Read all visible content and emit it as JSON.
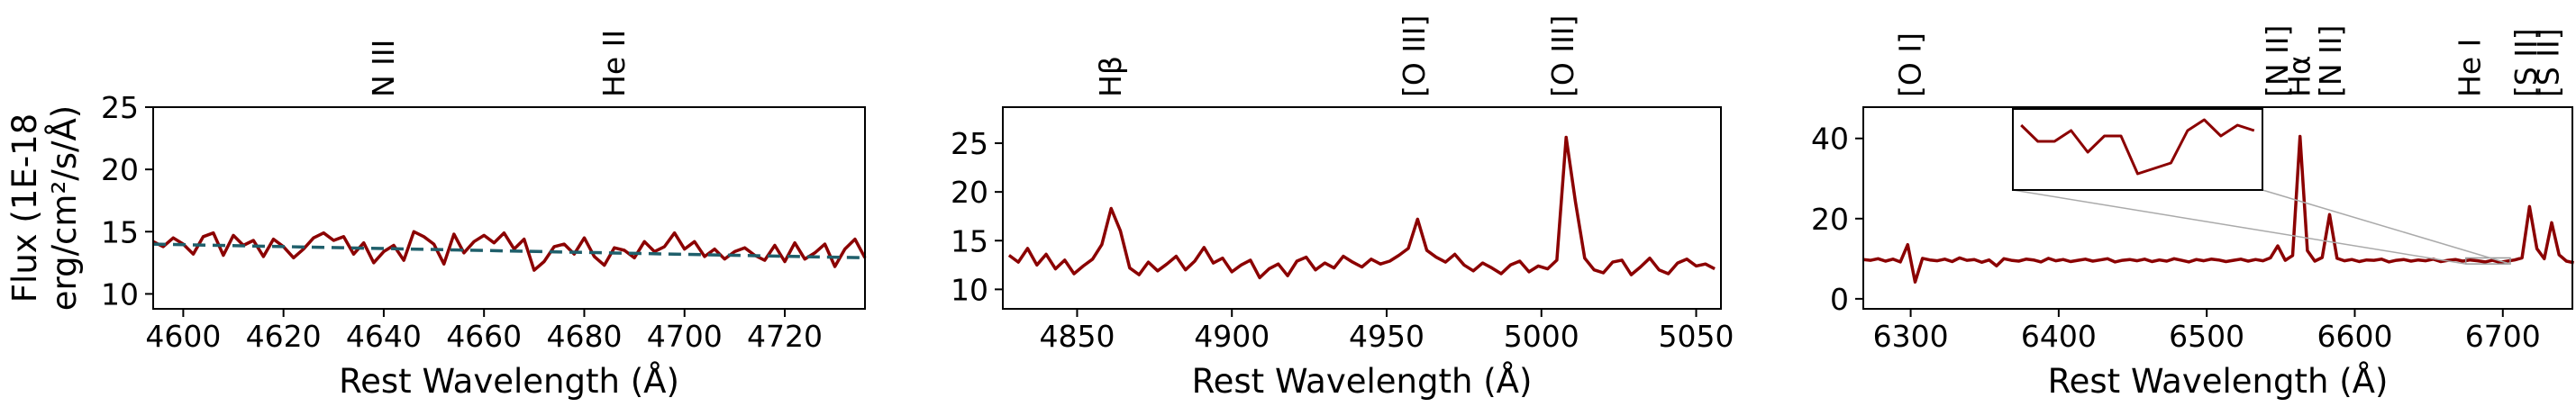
{
  "chart_data": [
    {
      "type": "line",
      "ylabel": [
        "Flux (1E-18",
        "erg/cm²/s/Å)"
      ],
      "xlabel": "Rest Wavelength (Å)",
      "xlim": [
        4594,
        4736
      ],
      "ylim": [
        8.8,
        25
      ],
      "xticks": [
        4600,
        4620,
        4640,
        4660,
        4680,
        4700,
        4720
      ],
      "yticks": [
        10,
        15,
        20,
        25
      ],
      "lines": [
        {
          "label": "N III",
          "x": 4640
        },
        {
          "label": "He II",
          "x": 4686
        }
      ],
      "series": [
        {
          "color": "#8b0000",
          "dash": false,
          "x": [
            4594,
            4596,
            4598,
            4600,
            4602,
            4604,
            4606,
            4608,
            4610,
            4612,
            4614,
            4616,
            4618,
            4620,
            4622,
            4624,
            4626,
            4628,
            4630,
            4632,
            4634,
            4636,
            4638,
            4640,
            4642,
            4644,
            4646,
            4648,
            4650,
            4652,
            4654,
            4656,
            4658,
            4660,
            4662,
            4664,
            4666,
            4668,
            4670,
            4672,
            4674,
            4676,
            4678,
            4680,
            4682,
            4684,
            4686,
            4688,
            4690,
            4692,
            4694,
            4696,
            4698,
            4700,
            4702,
            4704,
            4706,
            4708,
            4710,
            4712,
            4714,
            4716,
            4718,
            4720,
            4722,
            4724,
            4726,
            4728,
            4730,
            4732,
            4734,
            4736
          ],
          "values": [
            14.2,
            13.8,
            14.5,
            14.0,
            13.2,
            14.6,
            14.9,
            13.1,
            14.7,
            13.9,
            14.3,
            13.0,
            14.4,
            13.8,
            12.9,
            13.6,
            14.5,
            14.9,
            14.3,
            14.6,
            13.2,
            14.1,
            12.5,
            13.4,
            13.9,
            12.7,
            15.0,
            14.6,
            14.0,
            12.4,
            14.8,
            13.3,
            14.2,
            14.7,
            14.1,
            14.9,
            13.6,
            14.4,
            11.9,
            12.6,
            13.8,
            14.0,
            13.2,
            14.5,
            13.0,
            12.3,
            13.7,
            13.5,
            12.9,
            14.2,
            13.4,
            13.8,
            14.9,
            13.6,
            14.2,
            13.0,
            13.6,
            12.8,
            13.4,
            13.7,
            13.1,
            12.7,
            13.9,
            12.6,
            14.1,
            12.8,
            13.3,
            14.0,
            12.2,
            13.6,
            14.4,
            12.9
          ]
        },
        {
          "color": "#1f5f6b",
          "dash": true,
          "x": [
            4594,
            4736
          ],
          "values": [
            14.0,
            12.9
          ]
        }
      ]
    },
    {
      "type": "line",
      "xlabel": "Rest Wavelength (Å)",
      "xlim": [
        4826,
        5058
      ],
      "ylim": [
        8.0,
        28.7
      ],
      "xticks": [
        4850,
        4900,
        4950,
        5000,
        5050
      ],
      "yticks": [
        10,
        15,
        20,
        25
      ],
      "lines": [
        {
          "label": "Hβ",
          "x": 4861
        },
        {
          "label": "[O III]",
          "x": 4959
        },
        {
          "label": "[O III]",
          "x": 5007
        }
      ],
      "series": [
        {
          "color": "#8b0000",
          "dash": false,
          "x": [
            4828,
            4831,
            4834,
            4837,
            4840,
            4843,
            4846,
            4849,
            4852,
            4855,
            4858,
            4861,
            4864,
            4867,
            4870,
            4873,
            4876,
            4879,
            4882,
            4885,
            4888,
            4891,
            4894,
            4897,
            4900,
            4903,
            4906,
            4909,
            4912,
            4915,
            4918,
            4921,
            4924,
            4927,
            4930,
            4933,
            4936,
            4939,
            4942,
            4945,
            4948,
            4951,
            4954,
            4957,
            4960,
            4963,
            4966,
            4969,
            4972,
            4975,
            4978,
            4981,
            4984,
            4987,
            4990,
            4993,
            4996,
            4999,
            5002,
            5005,
            5008,
            5011,
            5014,
            5017,
            5020,
            5023,
            5026,
            5029,
            5032,
            5035,
            5038,
            5041,
            5044,
            5047,
            5050,
            5053,
            5056
          ],
          "values": [
            13.5,
            12.8,
            14.2,
            12.5,
            13.6,
            12.1,
            13.0,
            11.6,
            12.4,
            13.1,
            14.6,
            18.3,
            16.0,
            12.2,
            11.5,
            12.8,
            11.9,
            12.6,
            13.4,
            12.0,
            12.9,
            14.3,
            12.7,
            13.2,
            11.8,
            12.5,
            13.0,
            11.2,
            12.1,
            12.6,
            11.4,
            12.9,
            13.3,
            12.0,
            12.7,
            12.2,
            13.4,
            12.8,
            12.3,
            13.1,
            12.6,
            12.9,
            13.5,
            14.2,
            17.2,
            14.0,
            13.3,
            12.8,
            13.6,
            12.5,
            11.9,
            12.7,
            12.2,
            11.6,
            12.5,
            12.9,
            11.8,
            12.4,
            12.1,
            13.0,
            25.6,
            19.0,
            13.2,
            12.0,
            11.7,
            12.8,
            13.0,
            11.5,
            12.3,
            13.2,
            12.0,
            11.6,
            12.7,
            13.1,
            12.4,
            12.6,
            12.1
          ]
        }
      ]
    },
    {
      "type": "line",
      "xlabel": "Rest Wavelength (Å)",
      "xlim": [
        6268,
        6747
      ],
      "ylim": [
        -2.5,
        47.8
      ],
      "xticks": [
        6300,
        6400,
        6500,
        6600,
        6700
      ],
      "yticks": [
        0,
        20,
        40
      ],
      "lines": [
        {
          "label": "[O I]",
          "x": 6300
        },
        {
          "label": "[N II]",
          "x": 6548
        },
        {
          "label": "Hα",
          "x": 6563
        },
        {
          "label": "[N II]",
          "x": 6584
        },
        {
          "label": "He I",
          "x": 6678
        },
        {
          "label": "[S II]",
          "x": 6716
        },
        {
          "label": "[S II]",
          "x": 6731
        }
      ],
      "series": [
        {
          "color": "#8b0000",
          "dash": false,
          "x": [
            6268,
            6273,
            6278,
            6283,
            6288,
            6293,
            6298,
            6303,
            6308,
            6313,
            6318,
            6323,
            6328,
            6333,
            6338,
            6343,
            6348,
            6353,
            6358,
            6363,
            6368,
            6373,
            6378,
            6383,
            6388,
            6393,
            6398,
            6403,
            6408,
            6413,
            6418,
            6423,
            6428,
            6433,
            6438,
            6443,
            6448,
            6453,
            6458,
            6463,
            6468,
            6473,
            6478,
            6483,
            6488,
            6493,
            6498,
            6503,
            6508,
            6513,
            6518,
            6523,
            6528,
            6533,
            6538,
            6543,
            6548,
            6553,
            6558,
            6563,
            6568,
            6573,
            6578,
            6583,
            6588,
            6593,
            6598,
            6603,
            6608,
            6613,
            6618,
            6623,
            6628,
            6633,
            6638,
            6643,
            6648,
            6653,
            6658,
            6663,
            6668,
            6673,
            6678,
            6683,
            6688,
            6693,
            6698,
            6703,
            6708,
            6713,
            6718,
            6723,
            6728,
            6733,
            6738,
            6743,
            6748
          ],
          "values": [
            9.8,
            9.6,
            10.0,
            9.4,
            9.9,
            9.2,
            13.5,
            4.2,
            10.1,
            9.7,
            9.5,
            9.9,
            9.3,
            10.2,
            9.6,
            9.8,
            9.1,
            9.7,
            8.2,
            10.0,
            9.6,
            9.4,
            9.9,
            9.7,
            9.2,
            10.1,
            9.5,
            9.8,
            9.3,
            9.6,
            9.9,
            9.4,
            9.7,
            10.0,
            9.2,
            9.6,
            9.8,
            9.5,
            9.9,
            9.3,
            9.7,
            9.4,
            10.0,
            9.6,
            9.2,
            9.8,
            9.5,
            9.9,
            9.7,
            9.3,
            9.6,
            9.9,
            9.4,
            9.8,
            9.5,
            10.2,
            13.2,
            9.6,
            10.8,
            40.5,
            12.0,
            9.4,
            10.3,
            21.0,
            10.1,
            9.5,
            9.8,
            9.3,
            9.7,
            9.6,
            9.9,
            9.2,
            9.6,
            9.8,
            9.4,
            9.7,
            9.5,
            9.9,
            9.3,
            9.6,
            9.8,
            9.4,
            9.7,
            9.5,
            9.2,
            9.6,
            9.1,
            9.4,
            9.7,
            10.2,
            23.0,
            12.5,
            10.0,
            19.0,
            11.0,
            9.4,
            9.0
          ]
        }
      ],
      "inset": {
        "xlim": [
          6675,
          6705
        ],
        "ylim": [
          8.7,
          10.2
        ],
        "series": [
          {
            "color": "#8b0000",
            "x": [
              6676,
              6678,
              6680,
              6682,
              6684,
              6686,
              6688,
              6690,
              6692,
              6694,
              6696,
              6698,
              6700,
              6702,
              6704
            ],
            "values": [
              9.9,
              9.6,
              9.6,
              9.8,
              9.4,
              9.7,
              9.7,
              9.0,
              9.1,
              9.2,
              9.8,
              10.0,
              9.7,
              9.9,
              9.8
            ]
          }
        ]
      }
    }
  ]
}
